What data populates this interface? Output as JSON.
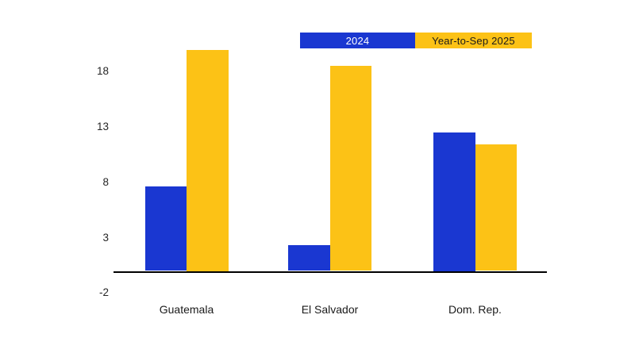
{
  "chart_data": {
    "type": "bar",
    "title": "",
    "xlabel": "",
    "ylabel": "",
    "categories": [
      "Guatemala",
      "El Salvador",
      "Dom. Rep."
    ],
    "series": [
      {
        "name": "2024",
        "color": "#1a37d1",
        "text_color": "#ffffff",
        "values": [
          7.6,
          2.3,
          12.5
        ]
      },
      {
        "name": "Year-to-Sep 2025",
        "color": "#fcc216",
        "text_color": "#1a1a1a",
        "values": [
          20.0,
          18.5,
          11.4
        ]
      }
    ],
    "yticks": [
      -2,
      3,
      8,
      13,
      18
    ],
    "ylim": [
      -2,
      20.5
    ],
    "baseline": 0,
    "grid": false,
    "legend_position": "top-center"
  },
  "colors": {
    "background": "#ffffff",
    "axis_line": "#000000",
    "tick_text": "#262626",
    "category_text": "#1a1a1a"
  }
}
